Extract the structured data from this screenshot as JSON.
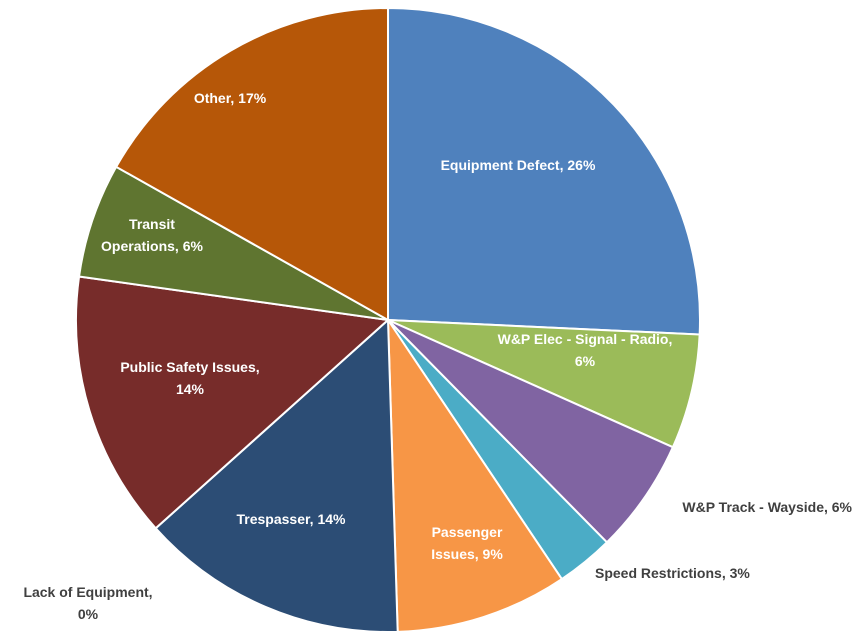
{
  "chart_data": {
    "type": "pie",
    "title": "",
    "slices": [
      {
        "name": "Equipment Defect",
        "value": 26,
        "label": "Equipment Defect, 26%",
        "color": "#4f81bd",
        "label_position": "inside"
      },
      {
        "name": "W&P Elec - Signal - Radio",
        "value": 6,
        "label": "W&P Elec - Signal - Radio, 6%",
        "color": "#9bbb59",
        "label_position": "inside"
      },
      {
        "name": "W&P Track - Wayside",
        "value": 6,
        "label": "W&P Track - Wayside, 6%",
        "color": "#8064a2",
        "label_position": "outside"
      },
      {
        "name": "Speed Restrictions",
        "value": 3,
        "label": "Speed Restrictions, 3%",
        "color": "#4bacc6",
        "label_position": "outside"
      },
      {
        "name": "Passenger Issues",
        "value": 9,
        "label": "Passenger Issues, 9%",
        "color": "#f79646",
        "label_position": "inside"
      },
      {
        "name": "Lack of Equipment",
        "value": 0,
        "label": "Lack of Equipment, 0%",
        "color": "#7f7f7f",
        "label_position": "outside"
      },
      {
        "name": "Trespasser",
        "value": 14,
        "label": "Trespasser, 14%",
        "color": "#2c4d75",
        "label_position": "inside"
      },
      {
        "name": "Public Safety Issues",
        "value": 14,
        "label": "Public Safety Issues, 14%",
        "color": "#772c2a",
        "label_position": "inside"
      },
      {
        "name": "Transit Operations",
        "value": 6,
        "label": "Transit Operations, 6%",
        "color": "#5f7530",
        "label_position": "inside"
      },
      {
        "name": "Other",
        "value": 17,
        "label": "Other, 17%",
        "color": "#b65708",
        "label_position": "inside"
      }
    ],
    "legend": "none",
    "data_labels": "category-and-percent"
  }
}
